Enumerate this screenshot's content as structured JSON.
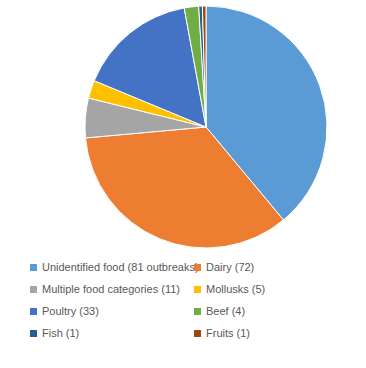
{
  "chart_data": {
    "type": "pie",
    "categories": [
      "Unidentified food (81 outbreaks)",
      "Dairy (72)",
      "Multiple food categories (11)",
      "Mollusks (5)",
      "Poultry (33)",
      "Beef (4)",
      "Fish (1)",
      "Fruits (1)"
    ],
    "values": [
      81,
      72,
      11,
      5,
      33,
      4,
      1,
      1
    ],
    "colors": [
      "#5b9bd5",
      "#ed7d31",
      "#a5a5a5",
      "#ffc000",
      "#4472c4",
      "#70ad47",
      "#255e91",
      "#9e480e"
    ],
    "legend": "bottom"
  }
}
